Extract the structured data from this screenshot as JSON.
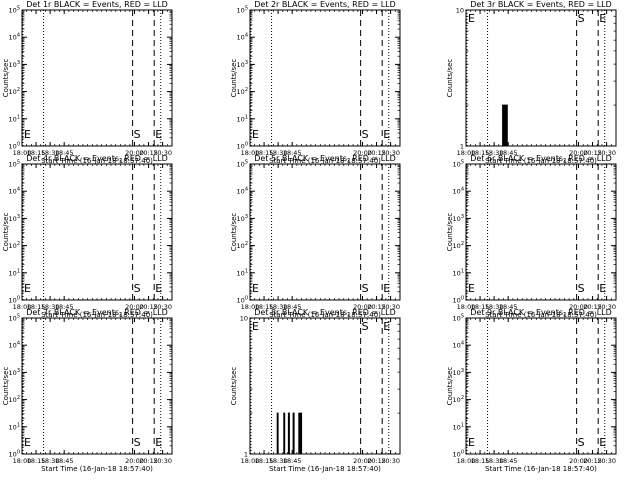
{
  "chart_data": [
    {
      "type": "line",
      "title": "Det 1r BLACK = Events, RED = LLD",
      "xlabel": "Start Time (16-Jan-18 18:57:40)",
      "ylabel": "Counts/sec",
      "xlim": [
        "18:00",
        "20:40"
      ],
      "yscale": "log",
      "ylim": [
        1,
        100000
      ],
      "xticks": [
        "18:00",
        "18:15",
        "18:30",
        "18:45",
        "20:00",
        "20:15",
        "20:30"
      ],
      "yticks": [
        "10^0",
        "10^1",
        "10^2",
        "10^3",
        "10^4",
        "10^5"
      ],
      "dotted_lines_x": [
        "18:01",
        "18:23",
        "20:28"
      ],
      "dashed_lines_x": [
        "19:58",
        "20:21"
      ],
      "markers": [
        {
          "label": "E",
          "x": "18:01"
        },
        {
          "label": "S",
          "x": "19:58"
        },
        {
          "label": "E",
          "x": "20:21"
        }
      ],
      "series": []
    },
    {
      "type": "line",
      "title": "Det 2r BLACK = Events, RED = LLD",
      "xlabel": "Start Time (16-Jan-18 18:57:40)",
      "ylabel": "Counts/sec",
      "xlim": [
        "18:00",
        "20:40"
      ],
      "yscale": "log",
      "ylim": [
        1,
        100000
      ],
      "xticks": [
        "18:00",
        "18:15",
        "18:30",
        "18:45",
        "20:00",
        "20:15",
        "20:30"
      ],
      "yticks": [
        "10^0",
        "10^1",
        "10^2",
        "10^3",
        "10^4",
        "10^5"
      ],
      "dotted_lines_x": [
        "18:01",
        "18:23",
        "20:28"
      ],
      "dashed_lines_x": [
        "19:58",
        "20:21"
      ],
      "markers": [
        {
          "label": "E",
          "x": "18:01"
        },
        {
          "label": "S",
          "x": "19:58"
        },
        {
          "label": "E",
          "x": "20:21"
        }
      ],
      "series": []
    },
    {
      "type": "line",
      "title": "Det 3r BLACK = Events, RED = LLD",
      "xlabel": "Start Time (16-Jan-18 18:57:40)",
      "ylabel": "Counts/sec",
      "xlim": [
        "18:00",
        "20:40"
      ],
      "yscale": "log",
      "ylim": [
        1,
        10
      ],
      "xticks": [
        "18:00",
        "18:15",
        "18:30",
        "18:45",
        "20:00",
        "20:15",
        "20:30"
      ],
      "yticks": [
        "1",
        "10"
      ],
      "dotted_lines_x": [
        "18:01",
        "18:23",
        "20:28"
      ],
      "dashed_lines_x": [
        "19:58",
        "20:21"
      ],
      "markers": [
        {
          "label": "E",
          "x": "18:01"
        },
        {
          "label": "S",
          "x": "19:58"
        },
        {
          "label": "E",
          "x": "20:21"
        }
      ],
      "series": [
        {
          "values": [
            {
              "x": "18:39",
              "y": 1
            },
            {
              "x": "18:39",
              "y": 2
            },
            {
              "x": "18:40",
              "y": 2
            },
            {
              "x": "18:40",
              "y": 1
            },
            {
              "x": "18:41",
              "y": 1
            },
            {
              "x": "18:41",
              "y": 2
            },
            {
              "x": "18:42",
              "y": 2
            },
            {
              "x": "18:42",
              "y": 1
            },
            {
              "x": "18:43",
              "y": 1
            },
            {
              "x": "18:43",
              "y": 2
            },
            {
              "x": "18:44",
              "y": 2
            },
            {
              "x": "18:44",
              "y": 1
            }
          ]
        }
      ]
    },
    {
      "type": "line",
      "title": "Det 4r BLACK = Events, RED = LLD",
      "xlabel": "Start Time (16-Jan-18 18:57:40)",
      "ylabel": "Counts/sec",
      "xlim": [
        "18:00",
        "20:40"
      ],
      "yscale": "log",
      "ylim": [
        1,
        100000
      ],
      "xticks": [
        "18:00",
        "18:15",
        "18:30",
        "18:45",
        "20:00",
        "20:15",
        "20:30"
      ],
      "yticks": [
        "10^0",
        "10^1",
        "10^2",
        "10^3",
        "10^4",
        "10^5"
      ],
      "dotted_lines_x": [
        "18:01",
        "18:23",
        "20:28"
      ],
      "dashed_lines_x": [
        "19:58",
        "20:21"
      ],
      "markers": [
        {
          "label": "E",
          "x": "18:01"
        },
        {
          "label": "S",
          "x": "19:58"
        },
        {
          "label": "E",
          "x": "20:21"
        }
      ],
      "series": []
    },
    {
      "type": "line",
      "title": "Det 5r BLACK = Events, RED = LLD",
      "xlabel": "Start Time (16-Jan-18 18:57:40)",
      "ylabel": "Counts/sec",
      "xlim": [
        "18:00",
        "20:40"
      ],
      "yscale": "log",
      "ylim": [
        1,
        100000
      ],
      "xticks": [
        "18:00",
        "18:15",
        "18:30",
        "18:45",
        "20:00",
        "20:15",
        "20:30"
      ],
      "yticks": [
        "10^0",
        "10^1",
        "10^2",
        "10^3",
        "10^4",
        "10^5"
      ],
      "dotted_lines_x": [
        "18:01",
        "18:23",
        "20:28"
      ],
      "dashed_lines_x": [
        "19:58",
        "20:21"
      ],
      "markers": [
        {
          "label": "E",
          "x": "18:01"
        },
        {
          "label": "S",
          "x": "19:58"
        },
        {
          "label": "E",
          "x": "20:21"
        }
      ],
      "series": []
    },
    {
      "type": "line",
      "title": "Det 6r BLACK = Events, RED = LLD",
      "xlabel": "Start Time (16-Jan-18 18:57:40)",
      "ylabel": "Counts/sec",
      "xlim": [
        "18:00",
        "20:40"
      ],
      "yscale": "log",
      "ylim": [
        1,
        100000
      ],
      "xticks": [
        "18:00",
        "18:15",
        "18:30",
        "18:45",
        "20:00",
        "20:15",
        "20:30"
      ],
      "yticks": [
        "10^0",
        "10^1",
        "10^2",
        "10^3",
        "10^4",
        "10^5"
      ],
      "dotted_lines_x": [
        "18:01",
        "18:23",
        "20:28"
      ],
      "dashed_lines_x": [
        "19:58",
        "20:21"
      ],
      "markers": [
        {
          "label": "E",
          "x": "18:01"
        },
        {
          "label": "S",
          "x": "19:58"
        },
        {
          "label": "E",
          "x": "20:21"
        }
      ],
      "series": []
    },
    {
      "type": "line",
      "title": "Det 7r BLACK = Events, RED = LLD",
      "xlabel": "Start Time (16-Jan-18 18:57:40)",
      "ylabel": "Counts/sec",
      "xlim": [
        "18:00",
        "20:40"
      ],
      "yscale": "log",
      "ylim": [
        1,
        100000
      ],
      "xticks": [
        "18:00",
        "18:15",
        "18:30",
        "18:45",
        "20:00",
        "20:15",
        "20:30"
      ],
      "yticks": [
        "10^0",
        "10^1",
        "10^2",
        "10^3",
        "10^4",
        "10^5"
      ],
      "dotted_lines_x": [
        "18:01",
        "18:23",
        "20:28"
      ],
      "dashed_lines_x": [
        "19:58",
        "20:21"
      ],
      "markers": [
        {
          "label": "E",
          "x": "18:01"
        },
        {
          "label": "S",
          "x": "19:58"
        },
        {
          "label": "E",
          "x": "20:21"
        }
      ],
      "series": []
    },
    {
      "type": "line",
      "title": "Det 8r BLACK = Events, RED = LLD",
      "xlabel": "Start Time (16-Jan-18 18:57:40)",
      "ylabel": "Counts/sec",
      "xlim": [
        "18:00",
        "20:40"
      ],
      "yscale": "log",
      "ylim": [
        1,
        10
      ],
      "xticks": [
        "18:00",
        "18:15",
        "18:30",
        "18:45",
        "20:00",
        "20:15",
        "20:30"
      ],
      "yticks": [
        "1",
        "10"
      ],
      "dotted_lines_x": [
        "18:01",
        "18:23",
        "20:28"
      ],
      "dashed_lines_x": [
        "19:58",
        "20:21"
      ],
      "markers": [
        {
          "label": "E",
          "x": "18:01"
        },
        {
          "label": "S",
          "x": "19:58"
        },
        {
          "label": "E",
          "x": "20:21"
        }
      ],
      "series": [
        {
          "values": [
            {
              "x": "18:29",
              "y": 1
            },
            {
              "x": "18:29",
              "y": 2
            },
            {
              "x": "18:30",
              "y": 2
            },
            {
              "x": "18:30",
              "y": 1
            },
            {
              "x": "18:36",
              "y": 1
            },
            {
              "x": "18:36",
              "y": 2
            },
            {
              "x": "18:37",
              "y": 2
            },
            {
              "x": "18:37",
              "y": 1
            },
            {
              "x": "18:41",
              "y": 1
            },
            {
              "x": "18:41",
              "y": 2
            },
            {
              "x": "18:42",
              "y": 2
            },
            {
              "x": "18:42",
              "y": 1
            },
            {
              "x": "18:46",
              "y": 1
            },
            {
              "x": "18:46",
              "y": 2
            },
            {
              "x": "18:47",
              "y": 2
            },
            {
              "x": "18:47",
              "y": 1
            },
            {
              "x": "18:52",
              "y": 1
            },
            {
              "x": "18:52",
              "y": 2
            },
            {
              "x": "18:53",
              "y": 2
            },
            {
              "x": "18:53",
              "y": 1
            },
            {
              "x": "18:54",
              "y": 1
            },
            {
              "x": "18:54",
              "y": 2
            },
            {
              "x": "18:55",
              "y": 2
            },
            {
              "x": "18:55",
              "y": 1
            }
          ]
        }
      ]
    },
    {
      "type": "line",
      "title": "Det 9r BLACK = Events, RED = LLD",
      "xlabel": "Start Time (16-Jan-18 18:57:40)",
      "ylabel": "Counts/sec",
      "xlim": [
        "18:00",
        "20:40"
      ],
      "yscale": "log",
      "ylim": [
        1,
        100000
      ],
      "xticks": [
        "18:00",
        "18:15",
        "18:30",
        "18:45",
        "20:00",
        "20:15",
        "20:30"
      ],
      "yticks": [
        "10^0",
        "10^1",
        "10^2",
        "10^3",
        "10^4",
        "10^5"
      ],
      "dotted_lines_x": [
        "18:01",
        "18:23",
        "20:28"
      ],
      "dashed_lines_x": [
        "19:58",
        "20:21"
      ],
      "markers": [
        {
          "label": "E",
          "x": "18:01"
        },
        {
          "label": "S",
          "x": "19:58"
        },
        {
          "label": "E",
          "x": "20:21"
        }
      ],
      "series": []
    }
  ]
}
